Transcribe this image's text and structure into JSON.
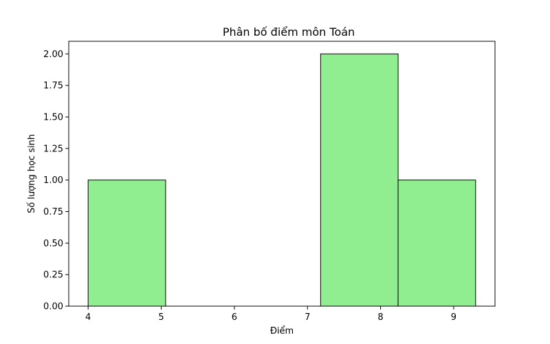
{
  "chart_data": {
    "type": "bar",
    "title": "Phân bố điểm môn Toán",
    "xlabel": "Điểm",
    "ylabel": "Số lượng học sinh",
    "bins": [
      {
        "x0": 4.0,
        "x1": 5.06,
        "count": 1
      },
      {
        "x0": 5.06,
        "x1": 6.12,
        "count": 0
      },
      {
        "x0": 6.12,
        "x1": 7.18,
        "count": 0
      },
      {
        "x0": 7.18,
        "x1": 8.24,
        "count": 2
      },
      {
        "x0": 8.24,
        "x1": 9.3,
        "count": 1
      }
    ],
    "xlim": [
      3.735,
      9.565
    ],
    "ylim": [
      0,
      2.1
    ],
    "xticks": [
      4,
      5,
      6,
      7,
      8,
      9
    ],
    "yticks": [
      0.0,
      0.25,
      0.5,
      0.75,
      1.0,
      1.25,
      1.5,
      1.75,
      2.0
    ],
    "ytick_labels": [
      "0.00",
      "0.25",
      "0.50",
      "0.75",
      "1.00",
      "1.25",
      "1.50",
      "1.75",
      "2.00"
    ],
    "bar_color": "#90ee90",
    "edge_color": "#000000",
    "grid": false,
    "legend": false
  }
}
